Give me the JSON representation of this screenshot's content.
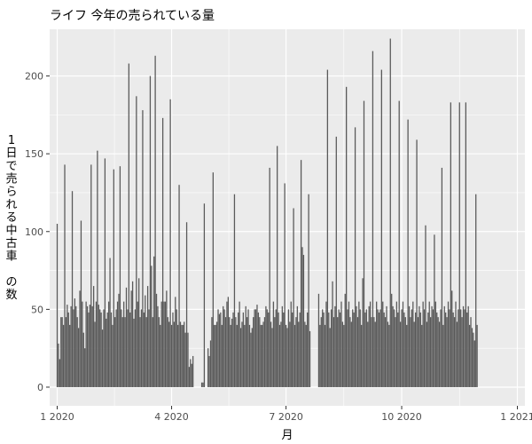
{
  "chart_data": {
    "type": "bar",
    "title": "ライフ 今年の売られている量",
    "xlabel": "月",
    "ylabel": "1日で売られる中古車 の数",
    "x_ticks": [
      "1 2020",
      "4 2020",
      "7 2020",
      "10 2020",
      "1 2021"
    ],
    "x_tick_days": [
      0,
      91,
      182,
      274,
      366
    ],
    "x_range_days": [
      -6,
      372
    ],
    "y_ticks": [
      0,
      50,
      100,
      150,
      200
    ],
    "ylim": [
      -12,
      230
    ],
    "grid": true,
    "bar_color": "#595959",
    "panel_color": "#ebebeb",
    "values": [
      105,
      28,
      18,
      45,
      45,
      40,
      143,
      45,
      53,
      48,
      40,
      52,
      126,
      50,
      57,
      52,
      45,
      38,
      62,
      107,
      55,
      35,
      25,
      55,
      52,
      48,
      53,
      143,
      52,
      65,
      42,
      55,
      152,
      53,
      50,
      48,
      37,
      50,
      147,
      44,
      48,
      55,
      83,
      48,
      40,
      140,
      45,
      50,
      55,
      60,
      142,
      50,
      45,
      55,
      45,
      64,
      50,
      208,
      48,
      62,
      68,
      44,
      50,
      187,
      55,
      70,
      45,
      50,
      178,
      48,
      59,
      45,
      65,
      50,
      200,
      78,
      45,
      84,
      213,
      60,
      52,
      45,
      40,
      55,
      173,
      55,
      55,
      62,
      45,
      42,
      185,
      40,
      48,
      42,
      58,
      50,
      40,
      130,
      42,
      40,
      40,
      42,
      35,
      106,
      35,
      13,
      18,
      15,
      20,
      0,
      0,
      0,
      0,
      0,
      0,
      3,
      3,
      118,
      0,
      0,
      25,
      20,
      30,
      45,
      138,
      40,
      40,
      42,
      50,
      47,
      48,
      40,
      52,
      50,
      45,
      55,
      58,
      45,
      40,
      44,
      48,
      124,
      45,
      40,
      48,
      55,
      38,
      42,
      48,
      40,
      52,
      45,
      50,
      40,
      35,
      38,
      45,
      50,
      50,
      53,
      48,
      45,
      40,
      40,
      42,
      45,
      52,
      50,
      48,
      141,
      42,
      38,
      55,
      45,
      50,
      155,
      48,
      40,
      42,
      52,
      48,
      131,
      40,
      38,
      50,
      42,
      55,
      48,
      115,
      40,
      45,
      52,
      42,
      48,
      146,
      90,
      85,
      42,
      40,
      48,
      124,
      36,
      0,
      0,
      0,
      0,
      0,
      0,
      60,
      40,
      45,
      50,
      48,
      40,
      55,
      204,
      48,
      38,
      50,
      68,
      45,
      52,
      161,
      45,
      50,
      48,
      55,
      42,
      40,
      60,
      193,
      50,
      55,
      45,
      42,
      50,
      48,
      167,
      52,
      45,
      55,
      50,
      40,
      70,
      184,
      48,
      50,
      42,
      52,
      55,
      45,
      216,
      45,
      42,
      55,
      50,
      48,
      50,
      204,
      55,
      48,
      45,
      52,
      42,
      40,
      224,
      60,
      52,
      50,
      45,
      55,
      48,
      184,
      42,
      50,
      55,
      48,
      45,
      40,
      172,
      52,
      45,
      50,
      55,
      42,
      48,
      159,
      45,
      52,
      48,
      40,
      55,
      50,
      104,
      42,
      48,
      55,
      45,
      52,
      50,
      98,
      55,
      48,
      45,
      42,
      50,
      141,
      40,
      52,
      48,
      45,
      55,
      50,
      183,
      62,
      48,
      45,
      55,
      42,
      50,
      183,
      50,
      45,
      52,
      50,
      183,
      48,
      52,
      40,
      45,
      38,
      35,
      30,
      124,
      40
    ]
  }
}
